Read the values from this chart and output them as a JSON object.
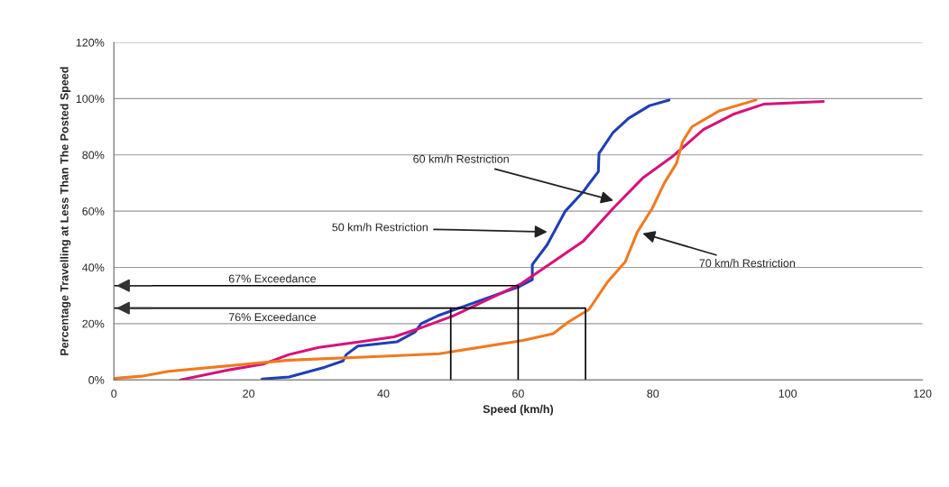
{
  "chart_data": {
    "type": "line",
    "xlabel": "Speed (km/h)",
    "ylabel": "Percentage Travelling at Less Than The Posted Speed",
    "xlim": [
      0,
      120
    ],
    "xticks": [
      0,
      20,
      40,
      60,
      80,
      100,
      120
    ],
    "ylim": [
      0,
      120
    ],
    "yticks": [
      {
        "value": 0,
        "label": "0%"
      },
      {
        "value": 20,
        "label": "20%"
      },
      {
        "value": 40,
        "label": "40%"
      },
      {
        "value": 60,
        "label": "60%"
      },
      {
        "value": 80,
        "label": "80%"
      },
      {
        "value": 100,
        "label": "100%"
      },
      {
        "value": 120,
        "label": "120%"
      }
    ],
    "grid": "y",
    "legend": false,
    "series": [
      {
        "color": "#1f3fb4",
        "x": [
          22,
          26,
          31.3,
          34,
          34.5,
          36.2,
          42,
          44.7,
          45.6,
          48.3,
          51.8,
          60,
          62.1,
          62.1,
          64.3,
          65.2,
          67,
          69.7,
          70.3,
          71.9,
          72,
          74.1,
          76.4,
          79.5,
          82.4
        ],
        "values": [
          0.3,
          1,
          4.5,
          6.7,
          9,
          12,
          13.5,
          17,
          20,
          23,
          26,
          33,
          35.6,
          41,
          48,
          52,
          60,
          67,
          69,
          74,
          80.5,
          88,
          93,
          97.5,
          99.5
        ]
      },
      {
        "color": "#d6127a",
        "x": [
          9.9,
          17,
          22.3,
          26,
          30.4,
          37,
          41.6,
          45,
          50.4,
          55,
          60.3,
          65.2,
          69.7,
          74.1,
          78.6,
          83,
          87.5,
          91.9,
          96.4,
          105.3
        ],
        "values": [
          0,
          3.5,
          5.7,
          9,
          11.5,
          13.7,
          15.3,
          18,
          22.8,
          28,
          34,
          42,
          49.4,
          61,
          72,
          79.6,
          89,
          94.4,
          98,
          99
        ]
      },
      {
        "color": "#f07a20",
        "x": [
          0,
          4.1,
          8.1,
          17,
          26,
          39.3,
          48.3,
          60.7,
          65.2,
          67.4,
          70.5,
          73.2,
          75.9,
          77.7,
          79.9,
          81.7,
          83.5,
          84.4,
          85.8,
          89.8,
          95.3
        ],
        "values": [
          0.5,
          1.3,
          3,
          5,
          7,
          8.3,
          9.3,
          14,
          16.4,
          20.5,
          25,
          34.6,
          42,
          52.6,
          61,
          70,
          77,
          84.7,
          90,
          95.6,
          99.5
        ]
      },
      {
        "color": "#000000",
        "x": [
          0,
          60,
          60
        ],
        "values": [
          33.5,
          33.5,
          0
        ]
      },
      {
        "color": "#000000",
        "x": [
          0,
          70,
          70
        ],
        "values": [
          25.5,
          25.5,
          0
        ]
      },
      {
        "color": "#000000",
        "x": [
          50,
          50
        ],
        "values": [
          0,
          25.5
        ]
      }
    ],
    "annotations": [
      {
        "text": "60 km/h Restriction",
        "x": 74.5,
        "y": 63.5
      },
      {
        "text": "50 km/h Restriction",
        "x": 64.7,
        "y": 52.6
      },
      {
        "text": "70 km/h Restriction",
        "x": 78.1,
        "y": 52.3
      },
      "67% Exceedance",
      "76% Exceedance"
    ]
  }
}
